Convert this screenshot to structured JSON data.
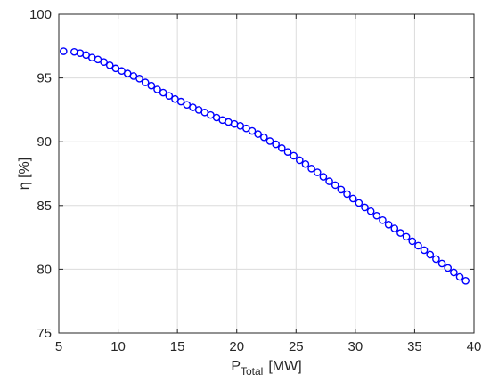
{
  "chart_data": {
    "type": "scatter",
    "xlabel": "P",
    "xlabel_subscript": "Total",
    "xlabel_unit": "[MW]",
    "ylabel": "η [%]",
    "xlim": [
      5,
      40
    ],
    "ylim": [
      75,
      100
    ],
    "xticks": [
      "5",
      "10",
      "15",
      "20",
      "25",
      "30",
      "35",
      "40"
    ],
    "yticks": [
      "75",
      "80",
      "85",
      "90",
      "95",
      "100"
    ],
    "grid": true,
    "marker": "circle-open",
    "color": "#0000ff",
    "series": [
      {
        "x": [
          5.4,
          6.3,
          6.8,
          7.3,
          7.8,
          8.3,
          8.8,
          9.3,
          9.8,
          10.3,
          10.8,
          11.3,
          11.8,
          12.3,
          12.8,
          13.3,
          13.8,
          14.3,
          14.8,
          15.3,
          15.8,
          16.3,
          16.8,
          17.3,
          17.8,
          18.3,
          18.8,
          19.3,
          19.8,
          20.3,
          20.8,
          21.3,
          21.8,
          22.3,
          22.8,
          23.3,
          23.8,
          24.3,
          24.8,
          25.3,
          25.8,
          26.3,
          26.8,
          27.3,
          27.8,
          28.3,
          28.8,
          29.3,
          29.8,
          30.3,
          30.8,
          31.3,
          31.8,
          32.3,
          32.8,
          33.3,
          33.8,
          34.3,
          34.8,
          35.3,
          35.8,
          36.3,
          36.8,
          37.3,
          37.8,
          38.3,
          38.8,
          39.3
        ],
        "y": [
          97.1,
          97.05,
          96.95,
          96.8,
          96.6,
          96.45,
          96.25,
          96.0,
          95.75,
          95.55,
          95.35,
          95.15,
          94.95,
          94.65,
          94.4,
          94.1,
          93.85,
          93.6,
          93.35,
          93.15,
          92.9,
          92.7,
          92.5,
          92.3,
          92.1,
          91.9,
          91.7,
          91.55,
          91.4,
          91.25,
          91.05,
          90.85,
          90.6,
          90.35,
          90.05,
          89.8,
          89.5,
          89.2,
          88.9,
          88.55,
          88.25,
          87.9,
          87.6,
          87.25,
          86.9,
          86.6,
          86.25,
          85.9,
          85.55,
          85.2,
          84.85,
          84.55,
          84.2,
          83.85,
          83.5,
          83.2,
          82.85,
          82.55,
          82.2,
          81.85,
          81.5,
          81.15,
          80.8,
          80.45,
          80.1,
          79.75,
          79.4,
          79.1
        ]
      }
    ]
  }
}
